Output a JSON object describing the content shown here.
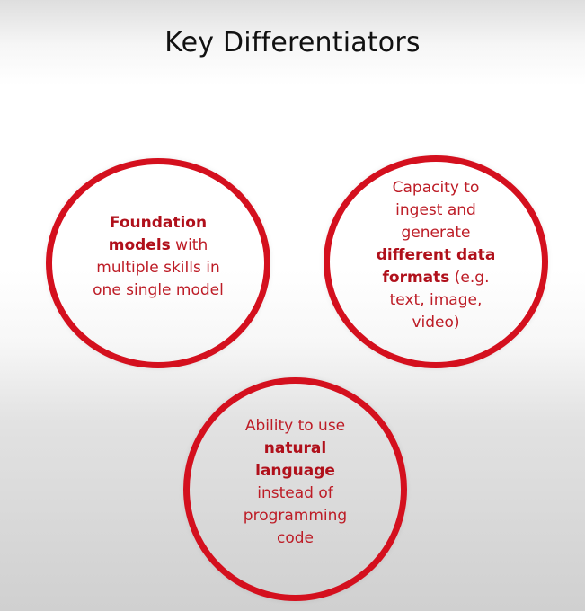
{
  "title": "Key Differentiators",
  "accent_color": "#d4101e",
  "text_color": "#bd1c26",
  "circles": [
    {
      "bold": "Foundation models",
      "text": " with multiple skills in one single model"
    },
    {
      "text_before": "Capacity to ingest and generate ",
      "bold": "different data formats",
      "text_after": " (e.g. text, image, video)"
    },
    {
      "text_before": "Ability to use ",
      "bold": "natural language",
      "text_after": " instead of programming code"
    }
  ]
}
